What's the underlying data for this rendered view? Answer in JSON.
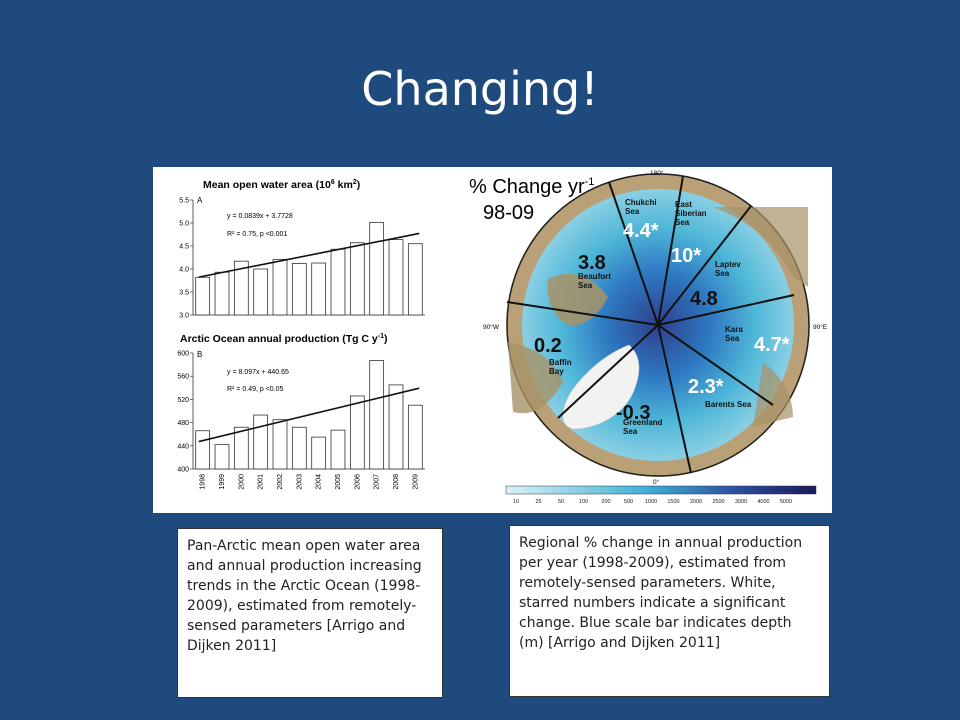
{
  "slide": {
    "title": "Changing!"
  },
  "chart_data": [
    {
      "type": "bar",
      "title": "Mean open water area (10",
      "title_sup": "6",
      "title_tail": " km",
      "title_sup2": "2",
      "title_end": ")",
      "panel_label": "A",
      "equation": "y = 0.0839x + 3.7728",
      "stats": "R² = 0.75, p <0.001",
      "categories": [
        "1998",
        "1999",
        "2000",
        "2001",
        "2002",
        "2003",
        "2004",
        "2005",
        "2006",
        "2007",
        "2008",
        "2009"
      ],
      "values": [
        3.82,
        3.93,
        4.17,
        4.0,
        4.21,
        4.12,
        4.13,
        4.43,
        4.57,
        5.01,
        4.64,
        4.55
      ],
      "yticks": [
        "3.0",
        "3.5",
        "4.0",
        "4.5",
        "5.0",
        "5.5"
      ],
      "ylim": [
        3.0,
        5.5
      ]
    },
    {
      "type": "bar",
      "title": "Arctic Ocean annual production (Tg C y",
      "title_sup": "-1",
      "title_end": ")",
      "panel_label": "B",
      "equation": "y = 8.097x + 440.65",
      "stats": "R² = 0.49, p <0.05",
      "categories": [
        "1998",
        "1999",
        "2000",
        "2001",
        "2002",
        "2003",
        "2004",
        "2005",
        "2006",
        "2007",
        "2008",
        "2009"
      ],
      "values": [
        466,
        442,
        472,
        493,
        485,
        472,
        455,
        467,
        526,
        587,
        545,
        510
      ],
      "yticks": [
        "400",
        "440",
        "480",
        "520",
        "560",
        "600"
      ],
      "ylim": [
        400,
        600
      ]
    }
  ],
  "map": {
    "title": "% Change yr",
    "title_sup": "-1",
    "period": "98-09",
    "compass": {
      "top": "180°",
      "left": "90°W",
      "right": "90°E",
      "bottom": "0°"
    },
    "regions": [
      {
        "name": "Chukchi\nSea",
        "value": "4.4*"
      },
      {
        "name": "East\nSiberian\nSea",
        "value": "10*"
      },
      {
        "name": "Laptev\nSea",
        "value": "4.8"
      },
      {
        "name": "Beaufort\nSea",
        "value": "3.8"
      },
      {
        "name": "Kara\nSea",
        "value": "4.7*"
      },
      {
        "name": "Baffin\nBay",
        "value": "0.2"
      },
      {
        "name": "Barents Sea",
        "value": "2.3*"
      },
      {
        "name": "Greenland\nSea",
        "value": "-0.3"
      }
    ],
    "scale_labels": [
      "10",
      "25",
      "50",
      "100",
      "200",
      "500",
      "1000",
      "1500",
      "2000",
      "2500",
      "3000",
      "4000",
      "5000"
    ],
    "scale_colors": {
      "shallow": "#c8ecf4",
      "mid": "#3cb6d6",
      "deep": "#1a1a5e"
    }
  },
  "captions": {
    "left": "Pan-Arctic mean open water area and annual production increasing trends in the Arctic Ocean (1998-2009), estimated from remotely-sensed parameters [Arrigo and Dijken 2011]",
    "right": "Regional % change in annual production per year (1998-2009), estimated from remotely-sensed parameters. White, starred numbers indicate a significant change. Blue scale bar indicates depth (m) [Arrigo and Dijken 2011]"
  }
}
